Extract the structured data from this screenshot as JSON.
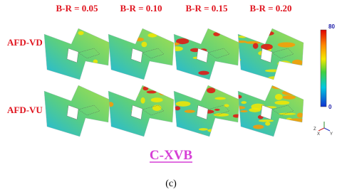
{
  "columns": [
    "B-R = 0.05",
    "B-R = 0.10",
    "B-R = 0.15",
    "B-R = 0.20"
  ],
  "rows": [
    "AFD-VD",
    "AFD-VU"
  ],
  "colorbar": {
    "max": "80",
    "min": "0"
  },
  "axes": [
    "Z",
    "X",
    "Y"
  ],
  "title": "C-XVB",
  "caption": "(c)"
}
